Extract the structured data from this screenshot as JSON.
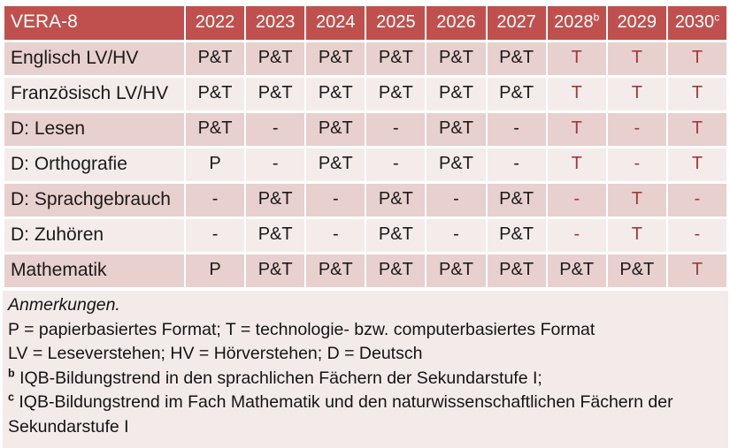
{
  "colors": {
    "header_bg": "#C0504D",
    "header_text": "#FFFFFF",
    "row_band_dark": "#E8D0CE",
    "row_band_light": "#F4ECEB",
    "notes_bg": "#F3EBEA",
    "cell_text": "#1A1A1A",
    "accent_red_text": "#9E3A38"
  },
  "table": {
    "title": "VERA-8",
    "year_columns": [
      {
        "label": "2022",
        "sup": ""
      },
      {
        "label": "2023",
        "sup": ""
      },
      {
        "label": "2024",
        "sup": ""
      },
      {
        "label": "2025",
        "sup": ""
      },
      {
        "label": "2026",
        "sup": ""
      },
      {
        "label": "2027",
        "sup": ""
      },
      {
        "label": "2028",
        "sup": "b"
      },
      {
        "label": "2029",
        "sup": ""
      },
      {
        "label": "2030",
        "sup": "c"
      }
    ],
    "rows": [
      {
        "label": "Englisch LV/HV",
        "cells": [
          {
            "text": "P&T",
            "red": false
          },
          {
            "text": "P&T",
            "red": false
          },
          {
            "text": "P&T",
            "red": false
          },
          {
            "text": "P&T",
            "red": false
          },
          {
            "text": "P&T",
            "red": false
          },
          {
            "text": "P&T",
            "red": false
          },
          {
            "text": "T",
            "red": true
          },
          {
            "text": "T",
            "red": true
          },
          {
            "text": "T",
            "red": true
          }
        ]
      },
      {
        "label": "Französisch LV/HV",
        "cells": [
          {
            "text": "P&T",
            "red": false
          },
          {
            "text": "P&T",
            "red": false
          },
          {
            "text": "P&T",
            "red": false
          },
          {
            "text": "P&T",
            "red": false
          },
          {
            "text": "P&T",
            "red": false
          },
          {
            "text": "P&T",
            "red": false
          },
          {
            "text": "T",
            "red": true
          },
          {
            "text": "T",
            "red": true
          },
          {
            "text": "T",
            "red": true
          }
        ]
      },
      {
        "label": "D: Lesen",
        "cells": [
          {
            "text": "P&T",
            "red": false
          },
          {
            "text": "-",
            "red": false
          },
          {
            "text": "P&T",
            "red": false
          },
          {
            "text": "-",
            "red": false
          },
          {
            "text": "P&T",
            "red": false
          },
          {
            "text": "-",
            "red": false
          },
          {
            "text": "T",
            "red": true
          },
          {
            "text": "-",
            "red": true
          },
          {
            "text": "T",
            "red": true
          }
        ]
      },
      {
        "label": "D: Orthografie",
        "cells": [
          {
            "text": "P",
            "red": false
          },
          {
            "text": "-",
            "red": false
          },
          {
            "text": "P&T",
            "red": false
          },
          {
            "text": "-",
            "red": false
          },
          {
            "text": "P&T",
            "red": false
          },
          {
            "text": "-",
            "red": false
          },
          {
            "text": "T",
            "red": true
          },
          {
            "text": "-",
            "red": true
          },
          {
            "text": "T",
            "red": true
          }
        ]
      },
      {
        "label": "D: Sprachgebrauch",
        "cells": [
          {
            "text": "-",
            "red": false
          },
          {
            "text": "P&T",
            "red": false
          },
          {
            "text": "-",
            "red": false
          },
          {
            "text": "P&T",
            "red": false
          },
          {
            "text": "-",
            "red": false
          },
          {
            "text": "P&T",
            "red": false
          },
          {
            "text": "-",
            "red": true
          },
          {
            "text": "T",
            "red": true
          },
          {
            "text": "-",
            "red": true
          }
        ]
      },
      {
        "label": "D: Zuhören",
        "cells": [
          {
            "text": "-",
            "red": false
          },
          {
            "text": "P&T",
            "red": false
          },
          {
            "text": "-",
            "red": false
          },
          {
            "text": "P&T",
            "red": false
          },
          {
            "text": "-",
            "red": false
          },
          {
            "text": "P&T",
            "red": false
          },
          {
            "text": "-",
            "red": true
          },
          {
            "text": "T",
            "red": true
          },
          {
            "text": "-",
            "red": true
          }
        ]
      },
      {
        "label": "Mathematik",
        "cells": [
          {
            "text": "P",
            "red": false
          },
          {
            "text": "P&T",
            "red": false
          },
          {
            "text": "P&T",
            "red": false
          },
          {
            "text": "P&T",
            "red": false
          },
          {
            "text": "P&T",
            "red": false
          },
          {
            "text": "P&T",
            "red": false
          },
          {
            "text": "P&T",
            "red": false
          },
          {
            "text": "P&T",
            "red": false
          },
          {
            "text": "T",
            "red": true
          }
        ]
      }
    ]
  },
  "notes": {
    "lines": [
      {
        "text": "Anmerkungen.",
        "italic": true,
        "sup": "",
        "wrap": false
      },
      {
        "text": "P = papierbasiertes Format; T = technologie- bzw. computerbasiertes Format",
        "italic": false,
        "sup": "",
        "wrap": false
      },
      {
        "text": "LV = Leseverstehen; HV = Hörverstehen; D = Deutsch",
        "italic": false,
        "sup": "",
        "wrap": false
      },
      {
        "text": "IQB-Bildungstrend in den sprachlichen Fächern der Sekundarstufe I;",
        "italic": false,
        "sup": "b",
        "wrap": false
      },
      {
        "text": "IQB-Bildungstrend im Fach Mathematik und den naturwissenschaftlichen Fächern der Sekundarstufe I",
        "italic": false,
        "sup": "c",
        "wrap": true
      }
    ]
  }
}
